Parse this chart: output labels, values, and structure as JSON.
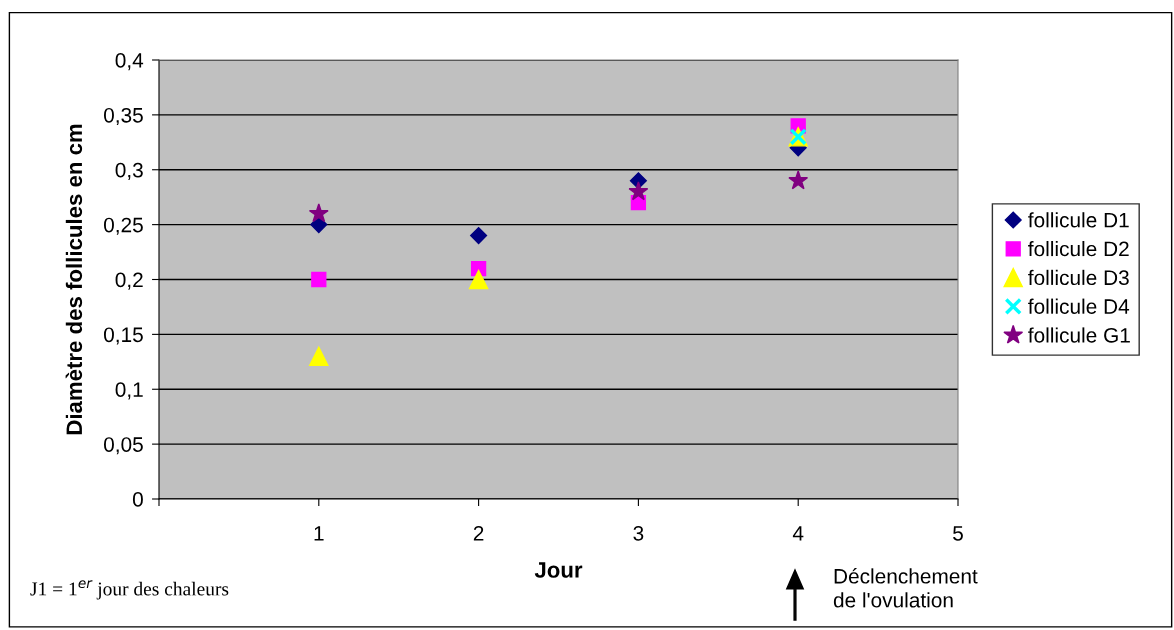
{
  "chart_data": {
    "type": "scatter",
    "xlabel": "Jour",
    "ylabel": "Diamètre des follicules en cm",
    "x": [
      1,
      2,
      3,
      4
    ],
    "series": [
      {
        "name": "follicule D1",
        "color": "#000080",
        "marker": "diamond",
        "values": [
          0.25,
          0.24,
          0.29,
          0.32
        ]
      },
      {
        "name": "follicule D2",
        "color": "#ff00ff",
        "marker": "square",
        "values": [
          0.2,
          0.21,
          0.27,
          0.34
        ]
      },
      {
        "name": "follicule D3",
        "color": "#ffff00",
        "marker": "triangle",
        "values": [
          0.13,
          0.2,
          null,
          0.33
        ]
      },
      {
        "name": "follicule D4",
        "color": "#00ffff",
        "marker": "cross",
        "values": [
          null,
          null,
          null,
          0.33
        ]
      },
      {
        "name": "follicule G1",
        "color": "#800080",
        "marker": "star",
        "values": [
          0.26,
          null,
          0.28,
          0.29
        ]
      }
    ],
    "xlim": [
      0,
      5
    ],
    "xticks": [
      {
        "value": 0,
        "label": null
      },
      1,
      2,
      3,
      4,
      5
    ],
    "ylim": [
      0,
      0.4
    ],
    "yticks": [
      {
        "value": 0,
        "label": "0"
      },
      {
        "value": 0.05,
        "label": "0,05"
      },
      {
        "value": 0.1,
        "label": "0,1"
      },
      {
        "value": 0.15,
        "label": "0,15"
      },
      {
        "value": 0.2,
        "label": "0,2"
      },
      {
        "value": 0.25,
        "label": "0,25"
      },
      {
        "value": 0.3,
        "label": "0,3"
      },
      {
        "value": 0.35,
        "label": "0,35"
      },
      {
        "value": 0.4,
        "label": "0,4"
      }
    ],
    "grid": "y",
    "legend": "right",
    "annotations": [
      "J1 = 1$^{er}$ jour des chaleurs",
      "Déclenchement\nde l'ovulation"
    ]
  }
}
